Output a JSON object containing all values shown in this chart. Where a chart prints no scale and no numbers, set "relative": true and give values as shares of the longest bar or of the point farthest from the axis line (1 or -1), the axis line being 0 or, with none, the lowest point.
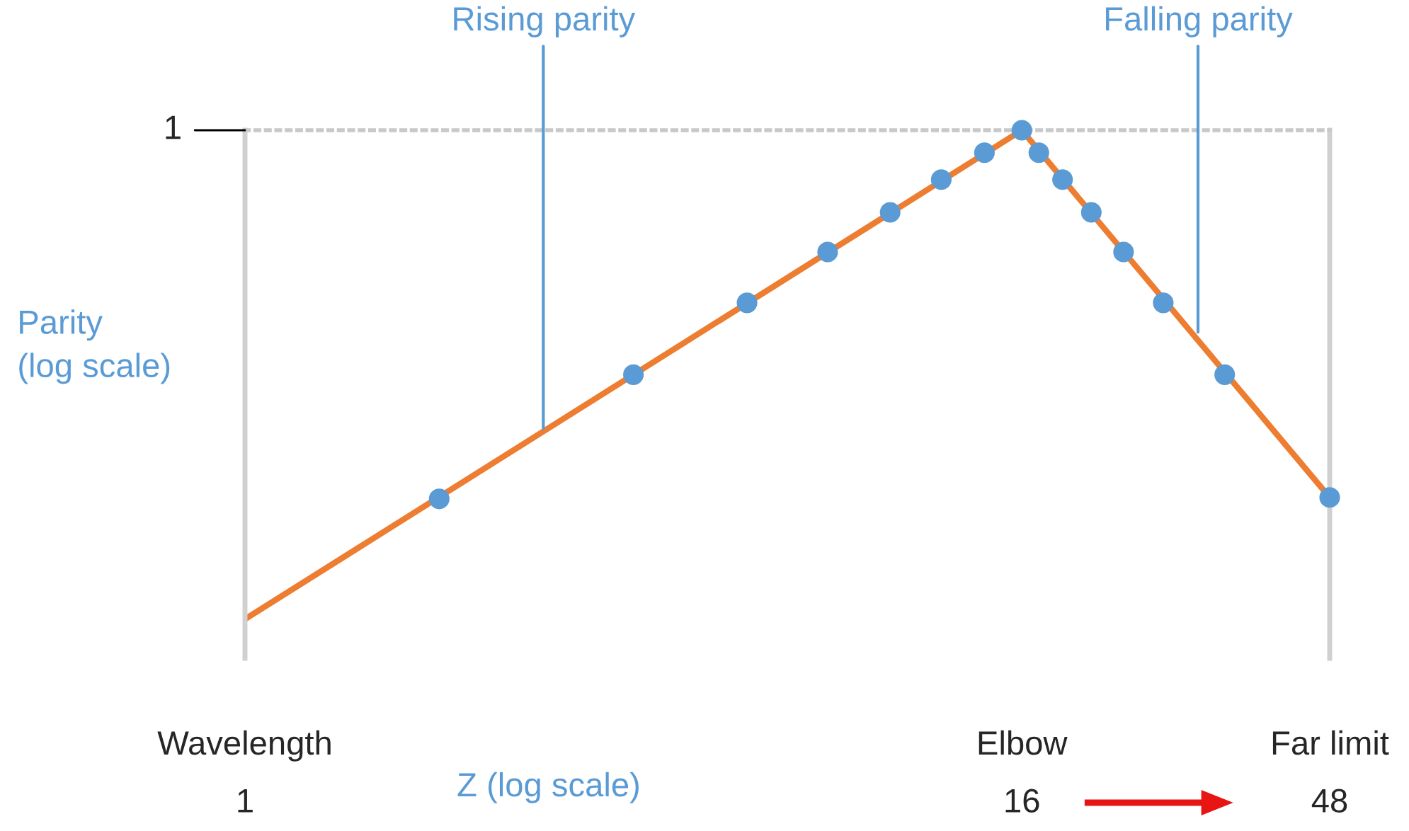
{
  "chart_data": {
    "type": "line",
    "relative": true,
    "log": "x",
    "xlabel": "Z (log scale)",
    "ylabel": "Parity\n(log scale)",
    "xlim": [
      1,
      48
    ],
    "xticks": [
      1,
      16,
      48
    ],
    "series": [
      {
        "color": "#ed7d31",
        "marker": "none",
        "x": [
          1,
          16,
          48
        ],
        "values": [
          0,
          1,
          0.249
        ]
      },
      {
        "type": "scatter",
        "color": "#5b9bd5",
        "marker": "circle",
        "x": [
          2,
          4,
          6,
          8,
          10,
          12,
          14,
          16,
          17,
          18.5,
          20.5,
          23,
          26.5,
          33,
          48
        ],
        "values": [
          0.246,
          0.5,
          0.647,
          0.751,
          0.832,
          0.899,
          0.954,
          1,
          0.954,
          0.899,
          0.832,
          0.751,
          0.647,
          0.5,
          0.249
        ]
      }
    ],
    "annotations": [
      "1",
      "Wavelength",
      "Elbow",
      "Far limit",
      {
        "text": "Rising parity",
        "x": 2.9,
        "y": 0.39
      },
      {
        "text": "Falling parity",
        "x": 30,
        "y": 0.587
      }
    ],
    "grid": false
  }
}
